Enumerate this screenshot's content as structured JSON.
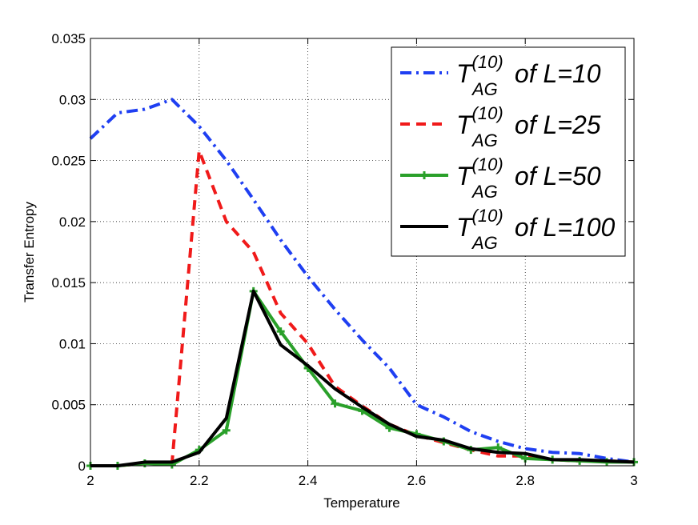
{
  "chart_data": {
    "type": "line",
    "xlabel": "Temperature",
    "ylabel": "Transfer Entropy",
    "xlim": [
      2,
      3
    ],
    "ylim": [
      0,
      0.035
    ],
    "xticks": [
      "2",
      "2.2",
      "2.4",
      "2.6",
      "2.8",
      "3"
    ],
    "xtick_values": [
      2,
      2.2,
      2.4,
      2.6,
      2.8,
      3
    ],
    "yticks": [
      "0",
      "0.005",
      "0.01",
      "0.015",
      "0.02",
      "0.025",
      "0.03",
      "0.035"
    ],
    "ytick_values": [
      0,
      0.005,
      0.01,
      0.015,
      0.02,
      0.025,
      0.03,
      0.035
    ],
    "grid": true,
    "legend_position": "top-right",
    "x": [
      2.0,
      2.05,
      2.1,
      2.15,
      2.2,
      2.25,
      2.3,
      2.35,
      2.4,
      2.45,
      2.5,
      2.55,
      2.6,
      2.65,
      2.7,
      2.75,
      2.8,
      2.85,
      2.9,
      2.95,
      3.0
    ],
    "series": [
      {
        "legend_T": "T",
        "legend_sup": "(10)",
        "legend_sub": "AG",
        "legend_rest": " of L=10",
        "color": "#1f3ff2",
        "style": "dashdot",
        "marker": "none",
        "values": [
          0.0268,
          0.0289,
          0.0292,
          0.03,
          0.0278,
          0.025,
          0.0218,
          0.0185,
          0.0155,
          0.0128,
          0.0103,
          0.008,
          0.005,
          0.004,
          0.0028,
          0.002,
          0.0014,
          0.0011,
          0.001,
          0.0006,
          0.0003
        ]
      },
      {
        "legend_T": "T",
        "legend_sup": "(10)",
        "legend_sub": "AG",
        "legend_rest": " of L=25",
        "color": "#f01a1a",
        "style": "dashed",
        "marker": "none",
        "values": [
          0.0,
          0.0,
          0.0002,
          0.0002,
          0.0258,
          0.02,
          0.0175,
          0.0125,
          0.01,
          0.0065,
          0.0049,
          0.0034,
          0.0025,
          0.0019,
          0.0013,
          0.0008,
          0.0008,
          0.0005,
          0.0004,
          0.0004,
          0.0003
        ]
      },
      {
        "legend_T": "T",
        "legend_sup": "(10)",
        "legend_sub": "AG",
        "legend_rest": " of L=50",
        "color": "#2aa02a",
        "style": "solid",
        "marker": "plus",
        "values": [
          0.0,
          0.0,
          0.0002,
          0.0001,
          0.0013,
          0.0029,
          0.0143,
          0.011,
          0.008,
          0.0051,
          0.0045,
          0.0031,
          0.0026,
          0.002,
          0.0013,
          0.0015,
          0.0006,
          0.0005,
          0.0004,
          0.0003,
          0.0003
        ]
      },
      {
        "legend_T": "T",
        "legend_sup": "(10)",
        "legend_sub": "AG",
        "legend_rest": " of L=100",
        "color": "#000000",
        "style": "solid",
        "marker": "none",
        "values": [
          0.0,
          0.0,
          0.0003,
          0.0003,
          0.0011,
          0.0039,
          0.0143,
          0.0099,
          0.0082,
          0.0063,
          0.0048,
          0.0034,
          0.0024,
          0.0021,
          0.0014,
          0.0011,
          0.001,
          0.0005,
          0.0005,
          0.0004,
          0.0003
        ]
      }
    ]
  }
}
